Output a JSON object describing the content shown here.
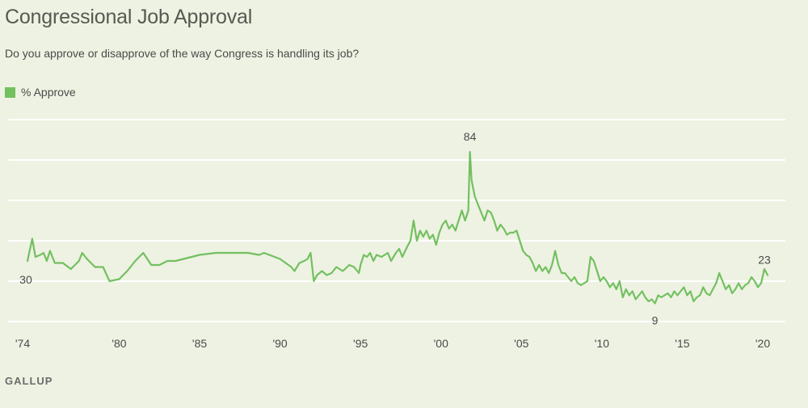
{
  "colors": {
    "line": "#72c060",
    "grid": "#ffffff",
    "text": "#4a4a4a",
    "background": "#eef2e2"
  },
  "header": {
    "title": "Congressional Job Approval",
    "subtitle": "Do you approve or disapprove of the way Congress is handling its job?"
  },
  "legend": {
    "label": "% Approve"
  },
  "source": "GALLUP",
  "chart_data": {
    "type": "line",
    "title": "Congressional Job Approval",
    "subtitle": "Do you approve or disapprove of the way Congress is handling its job?",
    "xlabel": "",
    "ylabel": "",
    "xlim": [
      1974,
      2020.5
    ],
    "ylim": [
      0,
      100
    ],
    "y_gridlines": [
      0,
      20,
      40,
      60,
      80,
      100
    ],
    "grid": true,
    "legend_position": "top-left",
    "x_ticks": [
      {
        "value": 1974,
        "label": "'74"
      },
      {
        "value": 1980,
        "label": "'80"
      },
      {
        "value": 1985,
        "label": "'85"
      },
      {
        "value": 1990,
        "label": "'90"
      },
      {
        "value": 1995,
        "label": "'95"
      },
      {
        "value": 2000,
        "label": "'00"
      },
      {
        "value": 2005,
        "label": "'05"
      },
      {
        "value": 2010,
        "label": "'10"
      },
      {
        "value": 2015,
        "label": "'15"
      },
      {
        "value": 2020,
        "label": "'20"
      }
    ],
    "annotations": [
      {
        "x": 2001.8,
        "y": 84,
        "text": "84",
        "position": "above"
      },
      {
        "x": 2013.3,
        "y": 9,
        "text": "9",
        "position": "below"
      },
      {
        "x": 1974.3,
        "y": 30,
        "text": "30",
        "position": "below-left"
      },
      {
        "x": 2020.1,
        "y": 23,
        "text": "23",
        "position": "above"
      }
    ],
    "series": [
      {
        "name": "% Approve",
        "x": [
          1974.3,
          1974.6,
          1974.8,
          1975.1,
          1975.3,
          1975.5,
          1975.7,
          1976.0,
          1976.5,
          1977.0,
          1977.5,
          1977.7,
          1978.0,
          1978.5,
          1979.0,
          1979.4,
          1980.0,
          1980.5,
          1981.0,
          1981.5,
          1982.0,
          1982.5,
          1983.0,
          1983.5,
          1984.0,
          1985.0,
          1986.0,
          1986.3,
          1987.0,
          1988.0,
          1988.7,
          1989.0,
          1990.0,
          1990.7,
          1990.9,
          1991.2,
          1991.5,
          1991.7,
          1991.9,
          1992.1,
          1992.3,
          1992.6,
          1992.9,
          1993.2,
          1993.5,
          1993.9,
          1994.3,
          1994.6,
          1994.9,
          1995.0,
          1995.2,
          1995.4,
          1995.6,
          1995.8,
          1996.0,
          1996.3,
          1996.5,
          1996.7,
          1996.9,
          1997.2,
          1997.4,
          1997.6,
          1997.9,
          1998.1,
          1998.3,
          1998.5,
          1998.7,
          1998.9,
          1999.1,
          1999.3,
          1999.5,
          1999.7,
          1999.9,
          2000.1,
          2000.3,
          2000.5,
          2000.7,
          2000.9,
          2001.1,
          2001.3,
          2001.5,
          2001.7,
          2001.8,
          2001.9,
          2002.1,
          2002.3,
          2002.5,
          2002.7,
          2002.9,
          2003.1,
          2003.3,
          2003.5,
          2003.7,
          2003.9,
          2004.1,
          2004.3,
          2004.5,
          2004.7,
          2004.9,
          2005.1,
          2005.3,
          2005.5,
          2005.7,
          2005.9,
          2006.1,
          2006.3,
          2006.5,
          2006.7,
          2006.9,
          2007.1,
          2007.3,
          2007.5,
          2007.7,
          2007.9,
          2008.1,
          2008.3,
          2008.5,
          2008.7,
          2008.9,
          2009.1,
          2009.3,
          2009.5,
          2009.7,
          2009.9,
          2010.1,
          2010.3,
          2010.5,
          2010.7,
          2010.9,
          2011.1,
          2011.3,
          2011.5,
          2011.7,
          2011.9,
          2012.1,
          2012.3,
          2012.5,
          2012.7,
          2012.9,
          2013.1,
          2013.3,
          2013.5,
          2013.7,
          2013.9,
          2014.1,
          2014.3,
          2014.5,
          2014.7,
          2014.9,
          2015.1,
          2015.3,
          2015.5,
          2015.7,
          2015.9,
          2016.1,
          2016.3,
          2016.5,
          2016.7,
          2016.9,
          2017.1,
          2017.3,
          2017.5,
          2017.7,
          2017.9,
          2018.1,
          2018.3,
          2018.5,
          2018.7,
          2018.9,
          2019.1,
          2019.3,
          2019.5,
          2019.7,
          2019.9,
          2020.1,
          2020.3
        ],
        "values": [
          30,
          41,
          32,
          33,
          34,
          30,
          35,
          29,
          29,
          26,
          30,
          34,
          31,
          27,
          27,
          20,
          21,
          25,
          30,
          34,
          28,
          28,
          30,
          30,
          31,
          33,
          34,
          34,
          34,
          34,
          33,
          34,
          31,
          27,
          25,
          29,
          30,
          31,
          34,
          20,
          23,
          25,
          23,
          24,
          27,
          25,
          28,
          27,
          24,
          28,
          33,
          32,
          34,
          30,
          33,
          32,
          33,
          34,
          30,
          34,
          36,
          32,
          37,
          40,
          50,
          40,
          45,
          42,
          45,
          41,
          43,
          38,
          44,
          48,
          50,
          46,
          48,
          45,
          50,
          55,
          50,
          55,
          84,
          70,
          62,
          58,
          54,
          50,
          55,
          54,
          50,
          45,
          48,
          46,
          43,
          44,
          44,
          45,
          40,
          35,
          33,
          32,
          29,
          25,
          28,
          25,
          27,
          24,
          28,
          35,
          28,
          24,
          24,
          22,
          20,
          22,
          19,
          18,
          19,
          20,
          32,
          30,
          25,
          20,
          22,
          20,
          17,
          19,
          16,
          20,
          12,
          16,
          13,
          15,
          11,
          13,
          15,
          12,
          10,
          11,
          9,
          13,
          12,
          13,
          14,
          12,
          15,
          13,
          15,
          17,
          13,
          15,
          10,
          12,
          13,
          17,
          14,
          13,
          16,
          19,
          24,
          20,
          16,
          18,
          14,
          16,
          19,
          16,
          18,
          19,
          22,
          20,
          17,
          19,
          26,
          23
        ]
      }
    ]
  }
}
